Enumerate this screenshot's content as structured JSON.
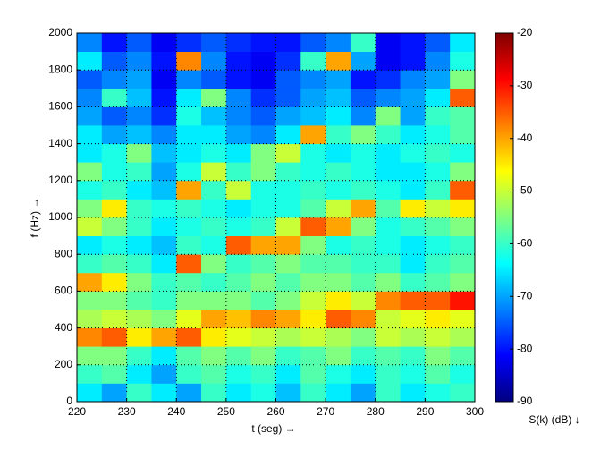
{
  "chart_data": {
    "type": "heatmap",
    "x_label": "t (seg) →",
    "y_label": "f (Hz) →",
    "colorbar_label": "S(k) (dB) ↓",
    "xlim": [
      220,
      300
    ],
    "xticks": [
      220,
      230,
      240,
      250,
      260,
      270,
      280,
      290,
      300
    ],
    "ylim": [
      0,
      2000
    ],
    "yticks": [
      0,
      200,
      400,
      600,
      800,
      1000,
      1200,
      1400,
      1600,
      1800,
      2000
    ],
    "zlim": [
      -90,
      -20
    ],
    "zticks": [
      -90,
      -80,
      -70,
      -60,
      -50,
      -40,
      -30,
      -20
    ],
    "colormap": "jet",
    "grid": true,
    "values": [
      [
        -65,
        -70,
        -60,
        -65,
        -70,
        -60,
        -65,
        -62,
        -68,
        -60,
        -65,
        -70,
        -60,
        -65,
        -62,
        -60
      ],
      [
        -60,
        -58,
        -65,
        -70,
        -60,
        -58,
        -62,
        -60,
        -65,
        -58,
        -62,
        -65,
        -60,
        -62,
        -58,
        -62
      ],
      [
        -55,
        -55,
        -60,
        -65,
        -58,
        -55,
        -58,
        -55,
        -60,
        -58,
        -55,
        -60,
        -58,
        -60,
        -55,
        -58
      ],
      [
        -38,
        -35,
        -45,
        -40,
        -35,
        -45,
        -48,
        -50,
        -52,
        -50,
        -52,
        -55,
        -50,
        -52,
        -50,
        -52
      ],
      [
        -52,
        -50,
        -52,
        -55,
        -48,
        -40,
        -42,
        -38,
        -40,
        -45,
        -35,
        -38,
        -50,
        -48,
        -45,
        -48
      ],
      [
        -55,
        -55,
        -58,
        -60,
        -55,
        -55,
        -55,
        -58,
        -55,
        -50,
        -45,
        -50,
        -38,
        -35,
        -35,
        -30
      ],
      [
        -40,
        -45,
        -55,
        -60,
        -58,
        -60,
        -58,
        -55,
        -58,
        -55,
        -55,
        -58,
        -55,
        -60,
        -58,
        -55
      ],
      [
        -60,
        -58,
        -60,
        -65,
        -35,
        -55,
        -60,
        -58,
        -55,
        -58,
        -58,
        -60,
        -60,
        -65,
        -60,
        -58
      ],
      [
        -65,
        -62,
        -65,
        -68,
        -60,
        -62,
        -35,
        -40,
        -40,
        -55,
        -62,
        -60,
        -62,
        -65,
        -62,
        -60
      ],
      [
        -50,
        -55,
        -60,
        -65,
        -62,
        -60,
        -62,
        -60,
        -50,
        -35,
        -40,
        -55,
        -62,
        -60,
        -58,
        -55
      ],
      [
        -55,
        -45,
        -60,
        -62,
        -60,
        -62,
        -65,
        -62,
        -62,
        -58,
        -50,
        -40,
        -58,
        -45,
        -50,
        -45
      ],
      [
        -62,
        -60,
        -65,
        -68,
        -40,
        -60,
        -50,
        -62,
        -62,
        -60,
        -62,
        -60,
        -62,
        -65,
        -60,
        -35
      ],
      [
        -55,
        -62,
        -60,
        -70,
        -62,
        -50,
        -60,
        -55,
        -60,
        -62,
        -60,
        -62,
        -65,
        -65,
        -62,
        -55
      ],
      [
        -65,
        -62,
        -55,
        -68,
        -65,
        -62,
        -65,
        -55,
        -50,
        -62,
        -65,
        -62,
        -65,
        -62,
        -60,
        -62
      ],
      [
        -65,
        -70,
        -68,
        -72,
        -65,
        -65,
        -70,
        -72,
        -65,
        -40,
        -60,
        -55,
        -60,
        -65,
        -62,
        -58
      ],
      [
        -70,
        -75,
        -72,
        -78,
        -62,
        -68,
        -72,
        -75,
        -70,
        -68,
        -65,
        -72,
        -55,
        -70,
        -60,
        -58
      ],
      [
        -72,
        -60,
        -68,
        -80,
        -65,
        -55,
        -72,
        -78,
        -75,
        -70,
        -68,
        -75,
        -72,
        -70,
        -65,
        -35
      ],
      [
        -75,
        -72,
        -70,
        -82,
        -72,
        -75,
        -80,
        -82,
        -75,
        -72,
        -70,
        -80,
        -78,
        -72,
        -70,
        -55
      ],
      [
        -65,
        -75,
        -72,
        -80,
        -38,
        -72,
        -80,
        -82,
        -78,
        -60,
        -40,
        -70,
        -82,
        -80,
        -72,
        -62
      ],
      [
        -72,
        -80,
        -75,
        -82,
        -78,
        -75,
        -78,
        -80,
        -80,
        -75,
        -72,
        -60,
        -82,
        -80,
        -75,
        -65
      ]
    ]
  }
}
